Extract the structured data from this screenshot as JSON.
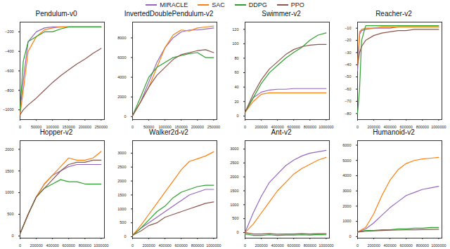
{
  "chart_data": [
    {
      "type": "line",
      "title": "Pendulum-v0",
      "legend": "top",
      "x": [
        0,
        10000,
        25000,
        50000,
        75000,
        100000,
        125000,
        150000,
        175000,
        200000,
        225000,
        250000
      ],
      "xlim": [
        0,
        260000
      ],
      "xticks": [
        0,
        50000,
        100000,
        150000,
        200000,
        250000
      ],
      "ylim": [
        -1100,
        -100
      ],
      "yticks": [
        -1000,
        -800,
        -600,
        -400,
        -200
      ],
      "series": [
        {
          "name": "MIRACLE",
          "color": "#9467bd",
          "values": [
            -1000,
            -700,
            -300,
            -200,
            -160,
            -150,
            -150,
            -150,
            -150,
            -150,
            -150,
            -150
          ]
        },
        {
          "name": "SAC",
          "color": "#ff7f0e",
          "values": [
            -1050,
            -800,
            -400,
            -250,
            -180,
            -160,
            -150,
            -150,
            -150,
            -150,
            -150,
            -150
          ]
        },
        {
          "name": "DDPG",
          "color": "#2ca02c",
          "values": [
            -1000,
            -500,
            -300,
            -250,
            -200,
            -200,
            -170,
            -150,
            -150,
            -150,
            -150,
            -150
          ]
        },
        {
          "name": "PPO",
          "color": "#8c564b",
          "values": [
            -1050,
            -1000,
            -950,
            -880,
            -800,
            -720,
            -650,
            -590,
            -530,
            -480,
            -420,
            -370
          ]
        }
      ]
    },
    {
      "type": "line",
      "title": "InvertedDoublePendulum-v2",
      "x": [
        0,
        25000,
        50000,
        75000,
        100000,
        125000,
        150000,
        175000,
        200000,
        225000,
        250000
      ],
      "xlim": [
        0,
        260000
      ],
      "xticks": [
        0,
        50000,
        100000,
        150000,
        200000,
        250000
      ],
      "ylim": [
        -300,
        9600
      ],
      "yticks": [
        0,
        2000,
        4000,
        6000,
        8000
      ],
      "series": [
        {
          "name": "MIRACLE",
          "color": "#9467bd",
          "values": [
            100,
            1500,
            3500,
            5500,
            7000,
            8000,
            8600,
            8800,
            8800,
            8900,
            9000
          ]
        },
        {
          "name": "SAC",
          "color": "#ff7f0e",
          "values": [
            100,
            1500,
            3000,
            5000,
            7000,
            8300,
            8800,
            8700,
            9000,
            9100,
            9200
          ]
        },
        {
          "name": "DDPG",
          "color": "#2ca02c",
          "values": [
            100,
            2000,
            4000,
            5000,
            5500,
            6000,
            6200,
            6400,
            6500,
            6000,
            6000
          ]
        },
        {
          "name": "PPO",
          "color": "#8c564b",
          "values": [
            100,
            1500,
            3000,
            4200,
            5000,
            5800,
            6300,
            6500,
            6700,
            6800,
            6500
          ]
        }
      ]
    },
    {
      "type": "line",
      "title": "Swimmer-v2",
      "x": [
        0,
        100000,
        200000,
        300000,
        400000,
        500000,
        600000,
        700000,
        800000,
        900000,
        1000000
      ],
      "xlim": [
        0,
        1040000
      ],
      "xticks": [
        0,
        200000,
        400000,
        600000,
        800000,
        1000000
      ],
      "ylim": [
        -5,
        130
      ],
      "yticks": [
        0,
        20,
        40,
        60,
        80,
        100,
        120
      ],
      "series": [
        {
          "name": "MIRACLE",
          "color": "#9467bd",
          "values": [
            5,
            25,
            33,
            36,
            37,
            37,
            38,
            38,
            38,
            38,
            38
          ]
        },
        {
          "name": "SAC",
          "color": "#ff7f0e",
          "values": [
            5,
            20,
            30,
            32,
            32,
            32,
            32,
            32,
            32,
            32,
            32
          ]
        },
        {
          "name": "DDPG",
          "color": "#2ca02c",
          "values": [
            5,
            25,
            45,
            60,
            70,
            80,
            88,
            95,
            105,
            112,
            115
          ]
        },
        {
          "name": "PPO",
          "color": "#8c564b",
          "values": [
            5,
            30,
            50,
            65,
            75,
            85,
            92,
            96,
            98,
            99,
            99
          ]
        }
      ]
    },
    {
      "type": "line",
      "title": "Reacher-v2",
      "x": [
        0,
        25000,
        50000,
        100000,
        200000,
        300000,
        400000,
        500000,
        600000,
        700000,
        800000,
        900000,
        1000000
      ],
      "xlim": [
        0,
        1040000
      ],
      "xticks": [
        0,
        200000,
        400000,
        600000,
        800000,
        1000000
      ],
      "ylim": [
        -85,
        -5
      ],
      "yticks": [
        -80,
        -70,
        -60,
        -50,
        -40,
        -30,
        -20,
        -10
      ],
      "series": [
        {
          "name": "MIRACLE",
          "color": "#9467bd",
          "values": [
            -45,
            -15,
            -12,
            -11,
            -10,
            -10,
            -10,
            -9,
            -9,
            -9,
            -9,
            -9,
            -9
          ]
        },
        {
          "name": "SAC",
          "color": "#ff7f0e",
          "values": [
            -40,
            -13,
            -11,
            -10,
            -10,
            -9,
            -9,
            -9,
            -9,
            -9,
            -9,
            -9,
            -9
          ]
        },
        {
          "name": "DDPG",
          "color": "#2ca02c",
          "values": [
            -80,
            -60,
            -20,
            -8,
            -8,
            -8,
            -8,
            -8,
            -8,
            -8,
            -8,
            -8,
            -8
          ]
        },
        {
          "name": "PPO",
          "color": "#8c564b",
          "values": [
            -40,
            -30,
            -25,
            -20,
            -16,
            -14,
            -13,
            -12,
            -12,
            -11,
            -11,
            -11,
            -11
          ]
        }
      ]
    },
    {
      "type": "line",
      "title": "Hopper-v2",
      "x": [
        0,
        100000,
        200000,
        300000,
        400000,
        500000,
        600000,
        700000,
        800000,
        900000,
        1000000
      ],
      "xlim": [
        0,
        1040000
      ],
      "xticks": [
        0,
        200000,
        400000,
        600000,
        800000,
        1000000
      ],
      "ylim": [
        -50,
        2200
      ],
      "yticks": [
        0,
        500,
        1000,
        1500,
        2000
      ],
      "series": [
        {
          "name": "MIRACLE",
          "color": "#9467bd",
          "values": [
            50,
            500,
            900,
            1200,
            1400,
            1500,
            1600,
            1650,
            1650,
            1650,
            1650
          ]
        },
        {
          "name": "SAC",
          "color": "#ff7f0e",
          "values": [
            50,
            500,
            900,
            1200,
            1400,
            1600,
            1800,
            1750,
            1750,
            1800,
            1950
          ]
        },
        {
          "name": "DDPG",
          "color": "#2ca02c",
          "values": [
            50,
            500,
            900,
            1100,
            1200,
            1300,
            1250,
            1250,
            1200,
            1200,
            1200
          ]
        },
        {
          "name": "PPO",
          "color": "#8c564b",
          "values": [
            50,
            500,
            900,
            1100,
            1300,
            1500,
            1650,
            1700,
            1700,
            1750,
            1750
          ]
        }
      ]
    },
    {
      "type": "line",
      "title": "Walker2d-v2",
      "x": [
        0,
        100000,
        200000,
        300000,
        400000,
        500000,
        600000,
        700000,
        800000,
        900000,
        1000000
      ],
      "xlim": [
        0,
        1040000
      ],
      "xticks": [
        0,
        200000,
        400000,
        600000,
        800000,
        1000000
      ],
      "ylim": [
        -50,
        3450
      ],
      "yticks": [
        0,
        500,
        1000,
        1500,
        2000,
        2500,
        3000
      ],
      "series": [
        {
          "name": "MIRACLE",
          "color": "#9467bd",
          "values": [
            50,
            300,
            500,
            700,
            900,
            1100,
            1300,
            1500,
            1600,
            1700,
            1700
          ]
        },
        {
          "name": "SAC",
          "color": "#ff7f0e",
          "values": [
            50,
            400,
            800,
            1200,
            1600,
            2000,
            2400,
            2700,
            2800,
            2900,
            3050
          ]
        },
        {
          "name": "DDPG",
          "color": "#2ca02c",
          "values": [
            50,
            300,
            600,
            900,
            1100,
            1400,
            1600,
            1700,
            1800,
            1850,
            1850
          ]
        },
        {
          "name": "PPO",
          "color": "#8c564b",
          "values": [
            50,
            200,
            400,
            500,
            700,
            800,
            900,
            1000,
            1100,
            1200,
            1250
          ]
        }
      ]
    },
    {
      "type": "line",
      "title": "Ant-v2",
      "x": [
        0,
        100000,
        200000,
        300000,
        400000,
        500000,
        600000,
        700000,
        800000,
        900000,
        1000000
      ],
      "xlim": [
        0,
        1040000
      ],
      "xticks": [
        0,
        200000,
        400000,
        600000,
        800000,
        1000000
      ],
      "ylim": [
        -200,
        3300
      ],
      "yticks": [
        0,
        500,
        1000,
        1500,
        2000,
        2500,
        3000
      ],
      "series": [
        {
          "name": "MIRACLE",
          "color": "#9467bd",
          "values": [
            0,
            700,
            1300,
            1800,
            2100,
            2400,
            2600,
            2750,
            2850,
            2900,
            2950
          ]
        },
        {
          "name": "SAC",
          "color": "#ff7f0e",
          "values": [
            0,
            300,
            700,
            1100,
            1500,
            1800,
            2100,
            2300,
            2450,
            2600,
            2700
          ]
        },
        {
          "name": "DDPG",
          "color": "#2ca02c",
          "values": [
            -50,
            -100,
            -100,
            -80,
            -100,
            -90,
            -90,
            -80,
            -90,
            -70,
            -80
          ]
        },
        {
          "name": "PPO",
          "color": "#8c564b",
          "values": [
            0,
            -50,
            -50,
            -40,
            -60,
            -50,
            -50,
            -40,
            -50,
            -40,
            -40
          ]
        }
      ]
    },
    {
      "type": "line",
      "title": "Humanoid-v2",
      "x": [
        0,
        100000,
        200000,
        300000,
        400000,
        500000,
        600000,
        700000,
        800000,
        900000,
        1000000
      ],
      "xlim": [
        0,
        1040000
      ],
      "xticks": [
        0,
        200000,
        400000,
        600000,
        800000,
        1000000
      ],
      "ylim": [
        -100,
        6300
      ],
      "yticks": [
        0,
        1000,
        2000,
        3000,
        4000,
        5000,
        6000
      ],
      "series": [
        {
          "name": "MIRACLE",
          "color": "#9467bd",
          "values": [
            300,
            500,
            900,
            1400,
            1900,
            2300,
            2700,
            2900,
            3100,
            3200,
            3300
          ]
        },
        {
          "name": "SAC",
          "color": "#ff7f0e",
          "values": [
            300,
            600,
            1500,
            2700,
            3700,
            4400,
            4800,
            5000,
            5100,
            5150,
            5200
          ]
        },
        {
          "name": "DDPG",
          "color": "#2ca02c",
          "values": [
            300,
            400,
            400,
            450,
            450,
            500,
            500,
            550,
            550,
            600,
            600
          ]
        },
        {
          "name": "PPO",
          "color": "#8c564b",
          "values": [
            300,
            350,
            380,
            400,
            420,
            430,
            440,
            450,
            460,
            470,
            480
          ]
        }
      ]
    }
  ]
}
